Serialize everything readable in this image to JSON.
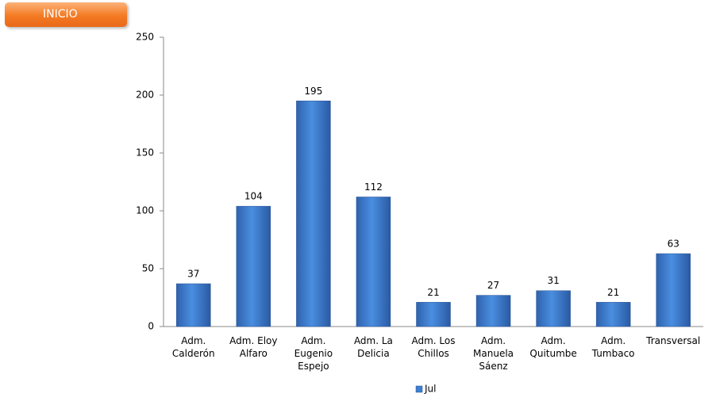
{
  "button": {
    "label": "INICIO"
  },
  "chart_data": {
    "type": "bar",
    "categories": [
      "Adm. Calderón",
      "Adm. Eloy Alfaro",
      "Adm. Eugenio Espejo",
      "Adm. La Delicia",
      "Adm. Los Chillos",
      "Adm. Manuela Sáenz",
      "Adm. Quitumbe",
      "Adm. Tumbaco",
      "Transversal"
    ],
    "series": [
      {
        "name": "Jul",
        "color": "#3f7fd0",
        "values": [
          37,
          104,
          195,
          112,
          21,
          27,
          31,
          21,
          63
        ]
      }
    ],
    "ylim": [
      0,
      250
    ],
    "yticks": [
      0,
      50,
      100,
      150,
      200,
      250
    ],
    "grid": false,
    "legend": "bottom"
  }
}
